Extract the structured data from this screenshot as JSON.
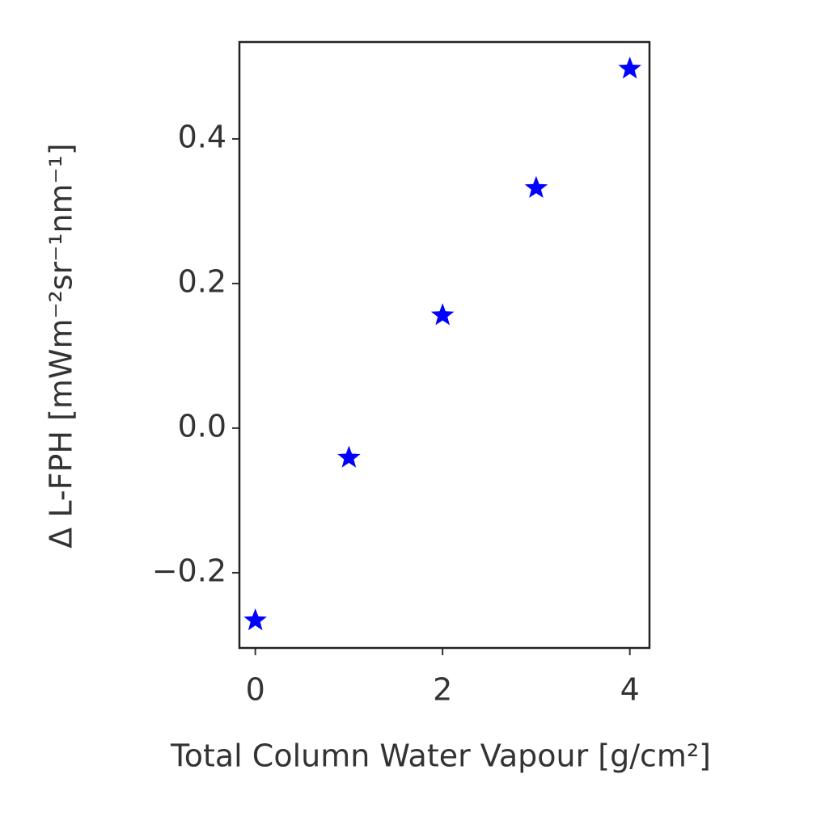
{
  "chart_data": {
    "type": "scatter",
    "x_label": "Total Column Water Vapour [g/cm²]",
    "y_label": "Δ L-FPH [mWm⁻²sr⁻¹nm⁻¹]",
    "series": [
      {
        "color": "#0000ff",
        "marker": "star",
        "x": [
          0,
          1,
          2,
          3,
          4
        ],
        "values": [
          -0.266,
          -0.041,
          0.156,
          0.332,
          0.497
        ]
      }
    ],
    "xlim": [
      -0.17,
      4.21
    ],
    "xticks": [
      0,
      2,
      4
    ],
    "ylim": [
      -0.304,
      0.534
    ],
    "yticks": [
      {
        "value": -0.2,
        "label": "−0.2"
      },
      {
        "value": 0,
        "label": "0.0"
      },
      0.2,
      0.4
    ],
    "grid": false
  }
}
